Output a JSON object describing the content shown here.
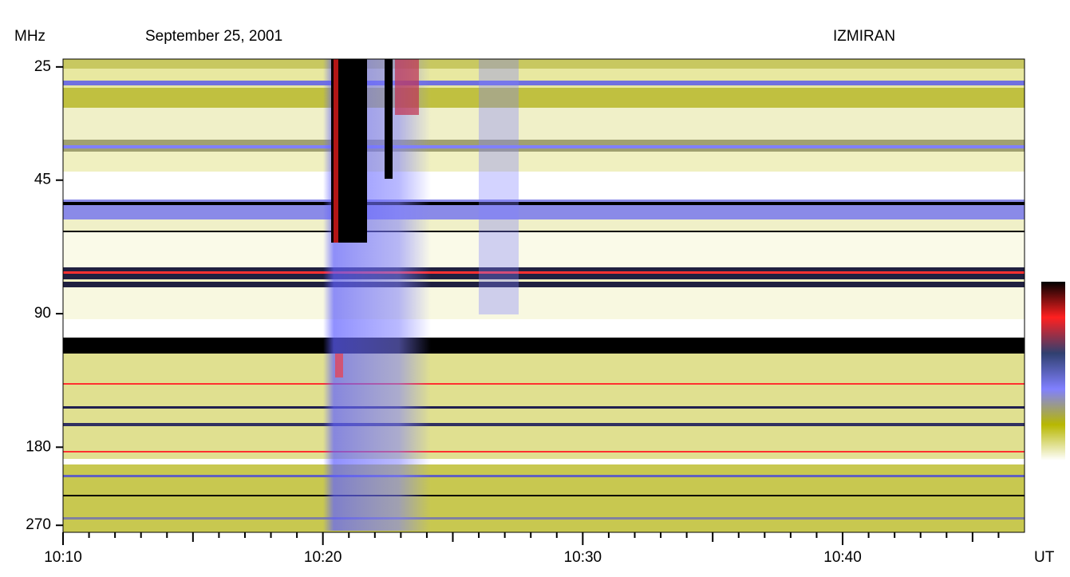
{
  "chart_data": {
    "type": "spectrogram",
    "title": "September 25, 2001",
    "source": "IZMIRAN",
    "ylabel": "MHz",
    "xlabel": "UT",
    "log_y": true,
    "y_inverted": true,
    "ylim": [
      24,
      280
    ],
    "yticks": [
      25,
      45,
      90,
      180,
      270
    ],
    "xlim": [
      10,
      47
    ],
    "xticks": [
      {
        "value": 10,
        "label": "10:10"
      },
      {
        "value": 20,
        "label": "10:20"
      },
      {
        "value": 30,
        "label": "10:30"
      },
      {
        "value": 40,
        "label": "10:40"
      }
    ],
    "minor_xticks": [
      11,
      12,
      13,
      14,
      15,
      16,
      17,
      18,
      19,
      21,
      22,
      23,
      24,
      25,
      26,
      27,
      28,
      29,
      31,
      32,
      33,
      34,
      35,
      36,
      37,
      38,
      39,
      41,
      42,
      43,
      44,
      45,
      46
    ],
    "colorscale": [
      "#ffffff",
      "#b8b800",
      "#8080ff",
      "#304070",
      "#ff2020",
      "#000000"
    ]
  }
}
